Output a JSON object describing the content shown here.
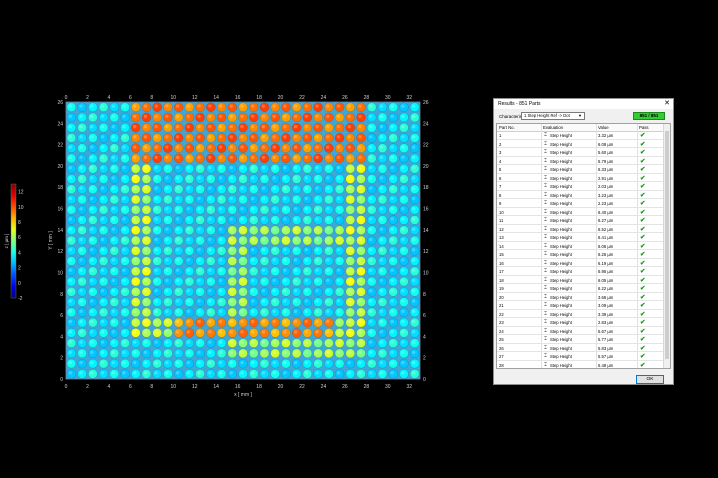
{
  "chart_data": {
    "type": "heatmap",
    "title": "",
    "xlabel": "x [ mm ]",
    "ylabel": "Y [ mm ]",
    "colorbar_label": "z [ µm ]",
    "xlim": [
      0,
      33
    ],
    "ylim": [
      0,
      26
    ],
    "x_ticks": [
      "0",
      "2",
      "4",
      "6",
      "8",
      "10",
      "12",
      "14",
      "16",
      "18",
      "20",
      "22",
      "24",
      "26",
      "28",
      "30",
      "32"
    ],
    "y_ticks": [
      "0",
      "2",
      "4",
      "6",
      "8",
      "10",
      "12",
      "14",
      "16",
      "18",
      "20",
      "22",
      "24",
      "26"
    ],
    "colorbar_ticks": [
      "12",
      "10",
      "8",
      "6",
      "4",
      "2",
      "0",
      "-2"
    ],
    "colorbar_range": [
      -2,
      13
    ],
    "grid_cols": 33,
    "grid_rows": 27,
    "description_values": {
      "background_level_um": 3.5,
      "outer_square_ring_level_um": 6.5,
      "outer_square_ring_x_mm": [
        6,
        27
      ],
      "outer_square_ring_y_mm": [
        4,
        22
      ],
      "top_band_peak_um": 9.5,
      "bottom_band_peak_um": 9.0,
      "inner_square_ring_level_um": 6.0,
      "inner_square_ring_x_mm": [
        15,
        27
      ],
      "inner_square_ring_y_mm": [
        2,
        14
      ]
    }
  },
  "dialog": {
    "title": "Results - 851 Parts",
    "close_glyph": "✕",
    "characteristic_label": "Characteristic:",
    "characteristic_value": "1  Step Height   Ref -> Dot",
    "summary_badge": "851 / 851",
    "columns": [
      "Part No.",
      "Evaluation",
      "Value",
      "Pass"
    ],
    "rows": [
      {
        "no": "1",
        "eval": "Step Height",
        "value": "3.32 µm"
      },
      {
        "no": "2",
        "eval": "Step Height",
        "value": "6.08 µm"
      },
      {
        "no": "3",
        "eval": "Step Height",
        "value": "5.60 µm"
      },
      {
        "no": "4",
        "eval": "Step Height",
        "value": "5.79 µm"
      },
      {
        "no": "5",
        "eval": "Step Height",
        "value": "6.33 µm"
      },
      {
        "no": "6",
        "eval": "Step Height",
        "value": "2.91 µm"
      },
      {
        "no": "7",
        "eval": "Step Height",
        "value": "2.03 µm"
      },
      {
        "no": "8",
        "eval": "Step Height",
        "value": "3.23 µm"
      },
      {
        "no": "9",
        "eval": "Step Height",
        "value": "2.23 µm"
      },
      {
        "no": "10",
        "eval": "Step Height",
        "value": "6.40 µm"
      },
      {
        "no": "11",
        "eval": "Step Height",
        "value": "6.27 µm"
      },
      {
        "no": "12",
        "eval": "Step Height",
        "value": "6.52 µm"
      },
      {
        "no": "13",
        "eval": "Step Height",
        "value": "6.41 µm"
      },
      {
        "no": "14",
        "eval": "Step Height",
        "value": "6.06 µm"
      },
      {
        "no": "15",
        "eval": "Step Height",
        "value": "6.25 µm"
      },
      {
        "no": "16",
        "eval": "Step Height",
        "value": "6.19 µm"
      },
      {
        "no": "17",
        "eval": "Step Height",
        "value": "5.95 µm"
      },
      {
        "no": "18",
        "eval": "Step Height",
        "value": "6.05 µm"
      },
      {
        "no": "19",
        "eval": "Step Height",
        "value": "6.22 µm"
      },
      {
        "no": "20",
        "eval": "Step Height",
        "value": "3.66 µm"
      },
      {
        "no": "21",
        "eval": "Step Height",
        "value": "3.09 µm"
      },
      {
        "no": "22",
        "eval": "Step Height",
        "value": "3.39 µm"
      },
      {
        "no": "23",
        "eval": "Step Height",
        "value": "2.83 µm"
      },
      {
        "no": "24",
        "eval": "Step Height",
        "value": "5.67 µm"
      },
      {
        "no": "25",
        "eval": "Step Height",
        "value": "5.77 µm"
      },
      {
        "no": "26",
        "eval": "Step Height",
        "value": "5.83 µm"
      },
      {
        "no": "27",
        "eval": "Step Height",
        "value": "5.57 µm"
      },
      {
        "no": "28",
        "eval": "Step Height",
        "value": "5.48 µm"
      },
      {
        "no": "29",
        "eval": "Step Height",
        "value": "3.71 µm"
      }
    ],
    "ok_label": "OK",
    "colors": {
      "pass": "#1a9a1a",
      "badge": "#33cc33"
    }
  }
}
